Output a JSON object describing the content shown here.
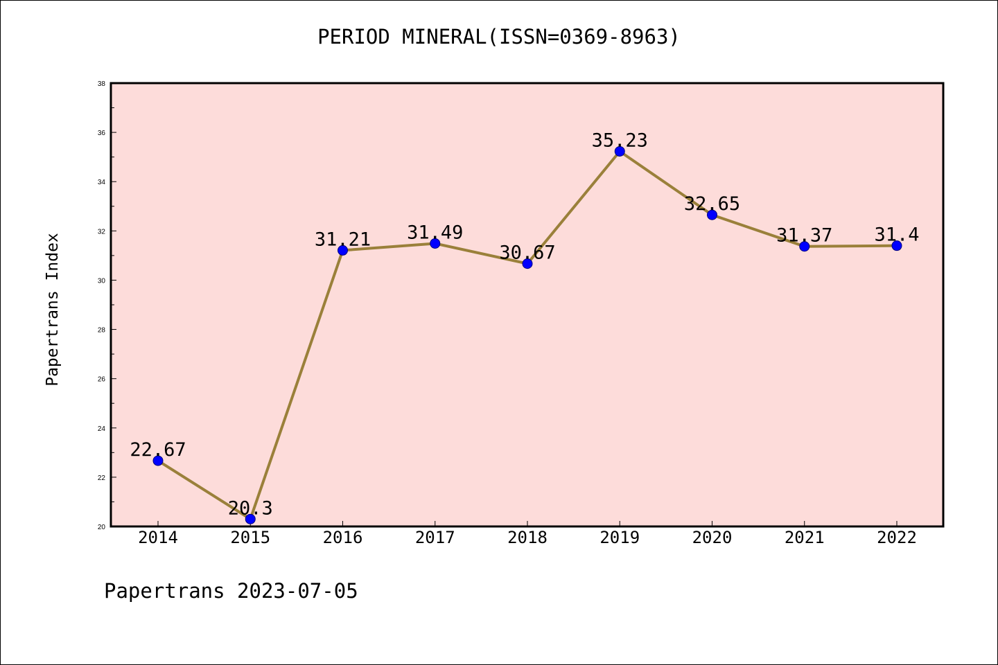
{
  "header": {
    "title": "PERIOD MINERAL(ISSN=0369-8963)"
  },
  "footer": {
    "text": "Papertrans 2023-07-05"
  },
  "chart_data": {
    "type": "line",
    "title": "PERIOD MINERAL(ISSN=0369-8963)",
    "xlabel": "",
    "ylabel": "Papertrans Index",
    "categories": [
      "2014",
      "2015",
      "2016",
      "2017",
      "2018",
      "2019",
      "2020",
      "2021",
      "2022"
    ],
    "values": [
      22.67,
      20.3,
      31.21,
      31.49,
      30.67,
      35.23,
      32.65,
      31.37,
      31.4
    ],
    "data_labels": [
      "22.67",
      "20.3",
      "31.21",
      "31.49",
      "30.67",
      "35.23",
      "32.65",
      "31.37",
      "31.4"
    ],
    "ylim": [
      20,
      38
    ],
    "yticks": [
      20,
      22,
      24,
      26,
      28,
      30,
      32,
      34,
      36,
      38
    ],
    "grid": false,
    "colors": {
      "plot_background": "#fddcda",
      "line": "#9a803a",
      "marker": "#0000ff",
      "marker_edge": "#000080"
    }
  }
}
